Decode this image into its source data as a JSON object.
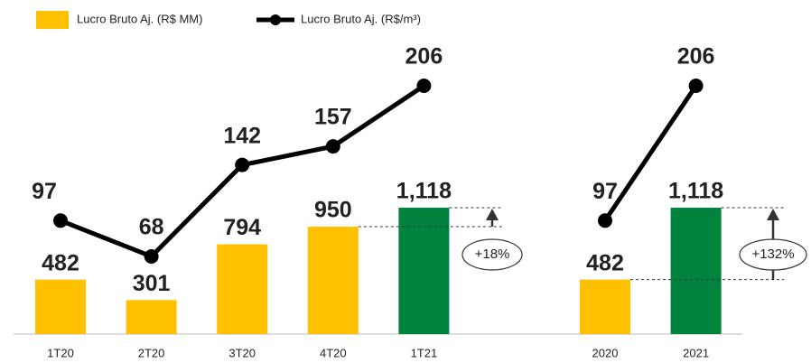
{
  "chart_data": [
    {
      "type": "bar-line",
      "categories": [
        "1T20",
        "2T20",
        "3T20",
        "4T20",
        "1T21"
      ],
      "series": [
        {
          "name": "Lucro Bruto Aj. (R$ MM)",
          "color": "#FFC000",
          "colors": [
            "#FFC000",
            "#FFC000",
            "#FFC000",
            "#FFC000",
            "#00843D"
          ],
          "values": [
            482,
            301,
            794,
            950,
            1118
          ],
          "value_labels": [
            "482",
            "301",
            "794",
            "950",
            "1,118"
          ]
        },
        {
          "name": "Lucro Bruto Aj. (R$/m³)",
          "color": "#000000",
          "values": [
            97,
            68,
            142,
            157,
            206
          ]
        }
      ],
      "annotations": [
        "+18%"
      ]
    },
    {
      "type": "bar-line",
      "categories": [
        "2020",
        "2021"
      ],
      "series": [
        {
          "colors": [
            "#FFC000",
            "#00843D"
          ],
          "values": [
            482,
            1118
          ],
          "value_labels": [
            "482",
            "1,118"
          ]
        },
        {
          "color": "#000000",
          "values": [
            97,
            206
          ]
        }
      ],
      "annotations": [
        "+132%"
      ]
    }
  ]
}
